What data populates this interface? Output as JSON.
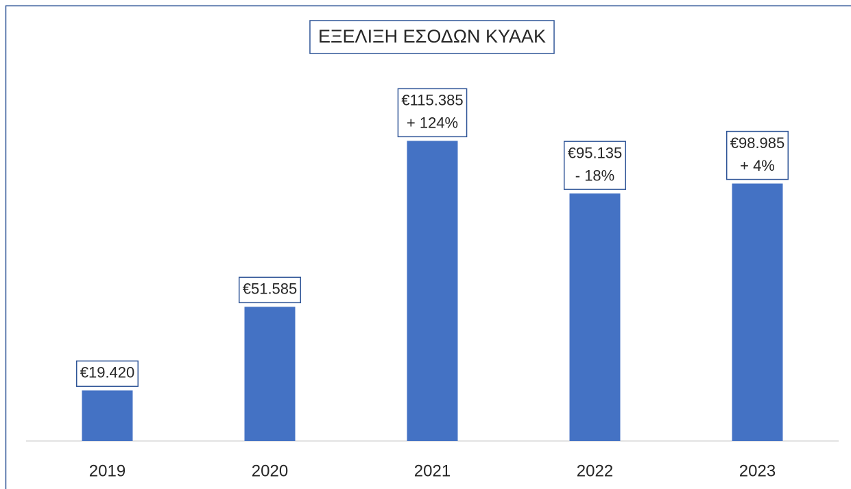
{
  "chart_data": {
    "type": "bar",
    "title": "ΕΞΕΛΙΞΗ ΕΣΟΔΩΝ ΚΥΑΑΚ",
    "categories": [
      "2019",
      "2020",
      "2021",
      "2022",
      "2023"
    ],
    "values": [
      19420,
      51585,
      115385,
      95135,
      98985
    ],
    "value_labels": [
      "€19.420",
      "€51.585",
      "€115.385",
      "€95.135",
      "€98.985"
    ],
    "annotations": [
      {
        "x": "2021",
        "text": "+ 124%"
      },
      {
        "x": "2022",
        "text": "- 18%"
      },
      {
        "x": "2023",
        "text": "+ 4%"
      }
    ],
    "color": "#4472c4",
    "ylim": [
      0,
      140000
    ]
  }
}
